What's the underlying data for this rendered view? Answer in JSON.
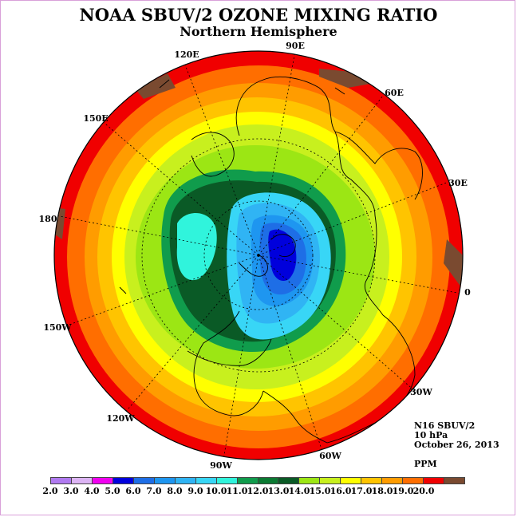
{
  "title": "NOAA SBUV/2 OZONE MIXING RATIO",
  "subtitle": "Northern Hemisphere",
  "info": {
    "satellite": "N16 SBUV/2",
    "level": "10 hPa",
    "date": "October 26, 2013",
    "unit": "PPM"
  },
  "longitude_labels": [
    "90E",
    "60E",
    "30E",
    "0",
    "30W",
    "60W",
    "90W",
    "120W",
    "150W",
    "180",
    "150E",
    "120E"
  ],
  "colorbar": {
    "ticks": [
      "2.0",
      "3.0",
      "4.0",
      "5.0",
      "6.0",
      "7.0",
      "8.0",
      "9.0",
      "10.0",
      "11.0",
      "12.0",
      "13.0",
      "14.0",
      "15.0",
      "16.0",
      "17.0",
      "18.0",
      "19.0",
      "20.0"
    ],
    "colors": [
      "#b07af0",
      "#dcb4f4",
      "#f000f0",
      "#0000dc",
      "#1e6ee6",
      "#1e96f0",
      "#30b4f4",
      "#38d6f6",
      "#30f4dc",
      "#109c4c",
      "#0a7a32",
      "#0a5a26",
      "#9ce614",
      "#c8f01e",
      "#ffff00",
      "#ffc400",
      "#ff9c00",
      "#ff6e00",
      "#f00000",
      "#7a4a30"
    ]
  },
  "map_data": {
    "projection": "north polar stereographic",
    "quantity": "ozone mixing ratio",
    "unit": "PPM",
    "level": "10 hPa",
    "coastlines": true,
    "latitude_circles": true,
    "meridians_every_deg": 30,
    "minimum_region": "over the North Pole / northern Eurasia, below 5.0 PPM",
    "maximum_region": "low latitudes around the rim, above 19.0 PPM"
  }
}
